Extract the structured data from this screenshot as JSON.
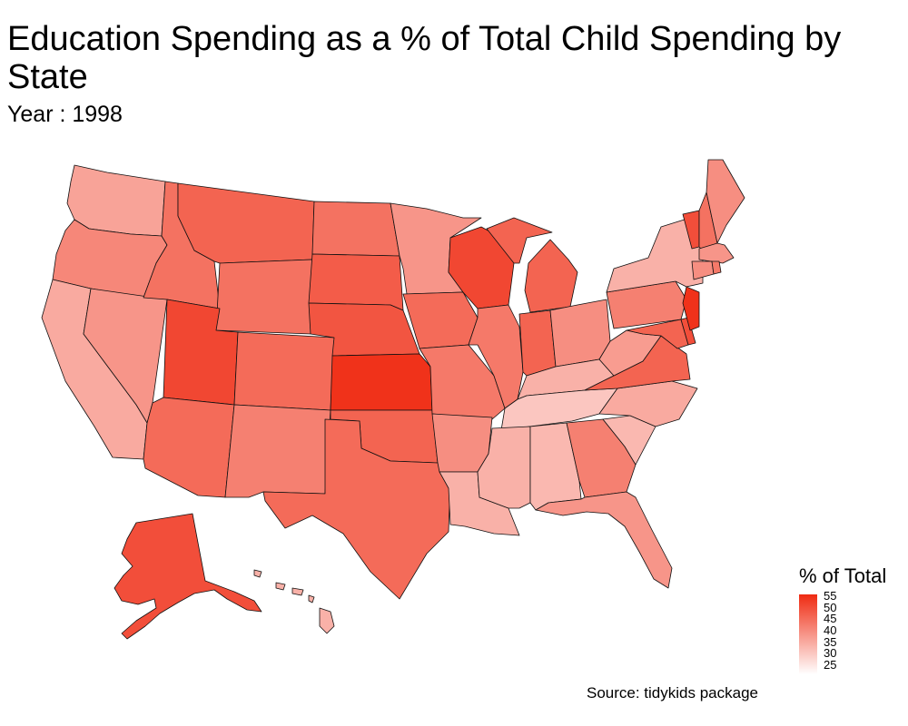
{
  "title": "Education Spending as a % of Total Child Spending by State",
  "subtitle": "Year : 1998",
  "caption": "Source: tidykids package",
  "legend": {
    "title": "% of Total",
    "ticks": [
      "55",
      "50",
      "45",
      "40",
      "35",
      "30",
      "25"
    ],
    "low_color": "#ffffff",
    "high_color": "#ef2b12",
    "range": [
      25,
      55
    ]
  },
  "states": [
    {
      "name": "Washington",
      "value": 38
    },
    {
      "name": "Oregon",
      "value": 42
    },
    {
      "name": "California",
      "value": 37
    },
    {
      "name": "Nevada",
      "value": 40
    },
    {
      "name": "Idaho",
      "value": 45
    },
    {
      "name": "Montana",
      "value": 47
    },
    {
      "name": "Wyoming",
      "value": 45
    },
    {
      "name": "Utah",
      "value": 51
    },
    {
      "name": "Arizona",
      "value": 46
    },
    {
      "name": "Colorado",
      "value": 46
    },
    {
      "name": "New Mexico",
      "value": 43
    },
    {
      "name": "North Dakota",
      "value": 45
    },
    {
      "name": "South Dakota",
      "value": 48
    },
    {
      "name": "Nebraska",
      "value": 49
    },
    {
      "name": "Kansas",
      "value": 54
    },
    {
      "name": "Oklahoma",
      "value": 47
    },
    {
      "name": "Texas",
      "value": 46
    },
    {
      "name": "Minnesota",
      "value": 40
    },
    {
      "name": "Iowa",
      "value": 46
    },
    {
      "name": "Missouri",
      "value": 44
    },
    {
      "name": "Arkansas",
      "value": 41
    },
    {
      "name": "Louisiana",
      "value": 36
    },
    {
      "name": "Wisconsin",
      "value": 51
    },
    {
      "name": "Illinois",
      "value": 44
    },
    {
      "name": "Michigan",
      "value": 47
    },
    {
      "name": "Indiana",
      "value": 47
    },
    {
      "name": "Ohio",
      "value": 41
    },
    {
      "name": "Kentucky",
      "value": 36
    },
    {
      "name": "Tennessee",
      "value": 33
    },
    {
      "name": "Mississippi",
      "value": 36
    },
    {
      "name": "Alabama",
      "value": 35
    },
    {
      "name": "Georgia",
      "value": 43
    },
    {
      "name": "Florida",
      "value": 40
    },
    {
      "name": "South Carolina",
      "value": 35
    },
    {
      "name": "North Carolina",
      "value": 37
    },
    {
      "name": "Virginia",
      "value": 47
    },
    {
      "name": "West Virginia",
      "value": 39
    },
    {
      "name": "Pennsylvania",
      "value": 43
    },
    {
      "name": "New York",
      "value": 36
    },
    {
      "name": "Vermont",
      "value": 50
    },
    {
      "name": "New Hampshire",
      "value": 45
    },
    {
      "name": "Maine",
      "value": 41
    },
    {
      "name": "Massachusetts",
      "value": 40
    },
    {
      "name": "Connecticut",
      "value": 41
    },
    {
      "name": "Rhode Island",
      "value": 44
    },
    {
      "name": "New Jersey",
      "value": 54
    },
    {
      "name": "Delaware",
      "value": 50
    },
    {
      "name": "Maryland",
      "value": 47
    },
    {
      "name": "Alaska",
      "value": 50
    },
    {
      "name": "Hawaii",
      "value": 36
    }
  ]
}
